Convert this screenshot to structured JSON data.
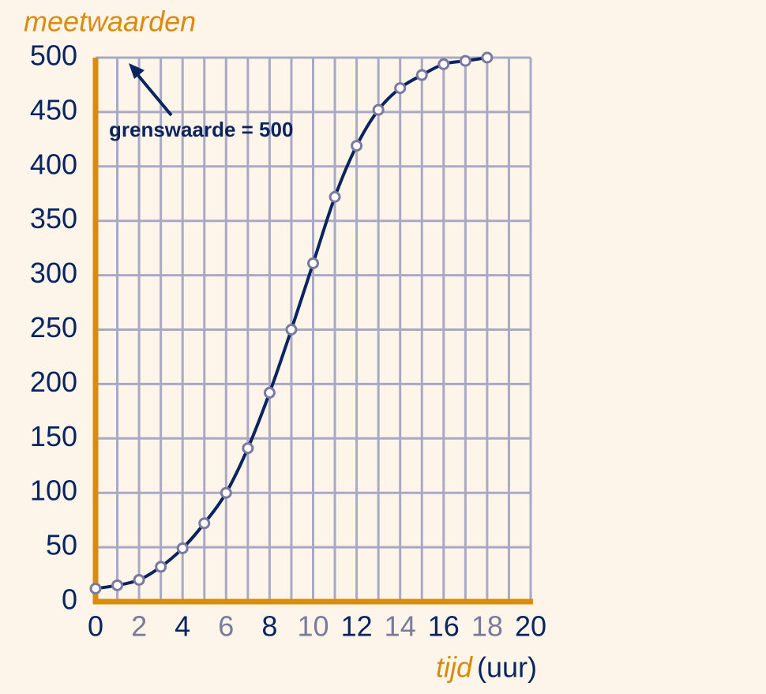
{
  "chart_data": {
    "type": "line",
    "y_label": "meetwaarden",
    "x_label": "tijd",
    "x_unit": "(uur)",
    "annotation": "grenswaarde = 500",
    "x": [
      0,
      1,
      2,
      3,
      4,
      5,
      6,
      7,
      8,
      9,
      10,
      11,
      12,
      13,
      14,
      15,
      16,
      17,
      18
    ],
    "series": [
      {
        "color": "#0a2460",
        "marker_color": "#7a7aa0",
        "values": [
          12,
          15,
          20,
          32,
          49,
          72,
          100,
          141,
          192,
          250,
          311,
          372,
          419,
          452,
          472,
          484,
          494,
          497,
          500
        ]
      }
    ],
    "xlim": [
      0,
      20
    ],
    "xticks": [
      0,
      2,
      4,
      6,
      8,
      10,
      12,
      14,
      16,
      18,
      20
    ],
    "xminorticks": [
      1,
      3,
      5,
      7,
      9,
      11,
      13,
      15,
      17,
      19
    ],
    "ylim": [
      0,
      500
    ],
    "yticks": [
      0,
      50,
      100,
      150,
      200,
      250,
      300,
      350,
      400,
      450,
      500
    ],
    "grid": true,
    "axis_color": "#dc8a0c",
    "grid_color": "#a9a9c6"
  }
}
